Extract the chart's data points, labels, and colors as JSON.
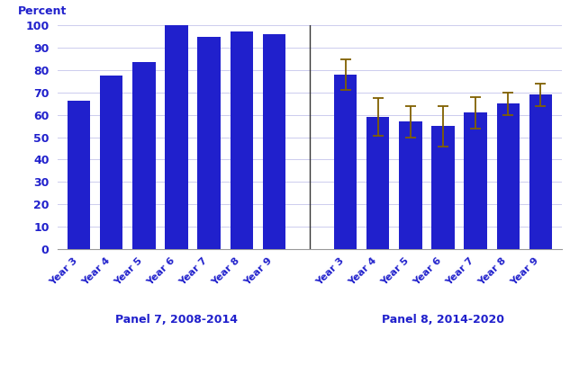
{
  "panel7_labels": [
    "Year 3",
    "Year 4",
    "Year 5",
    "Year 6",
    "Year 7",
    "Year 8",
    "Year 9"
  ],
  "panel7_values": [
    66.5,
    77.5,
    83.5,
    100,
    95,
    97.5,
    96
  ],
  "panel8_labels": [
    "Year 3",
    "Year 4",
    "Year 5",
    "Year 6",
    "Year 7",
    "Year 8",
    "Year 9"
  ],
  "panel8_values": [
    78,
    59,
    57,
    55,
    61,
    65,
    69
  ],
  "panel8_errors_low": [
    7,
    8.5,
    7,
    9,
    7,
    5,
    5
  ],
  "panel8_errors_high": [
    7,
    8.5,
    7,
    9,
    7,
    5,
    5
  ],
  "bar_color": "#2020CC",
  "error_color": "#806000",
  "panel7_label": "Panel 7, 2008-2014",
  "panel8_label": "Panel 8, 2014-2020",
  "ylabel": "Percent",
  "ylim": [
    0,
    100
  ],
  "yticks": [
    0,
    10,
    20,
    30,
    40,
    50,
    60,
    70,
    80,
    90,
    100
  ],
  "background_color": "#ffffff",
  "grid_color": "#ccccee",
  "label_color": "#2020CC",
  "tick_color": "#2020CC",
  "bar_width": 0.7,
  "figsize": [
    6.43,
    4.07
  ],
  "dpi": 100
}
